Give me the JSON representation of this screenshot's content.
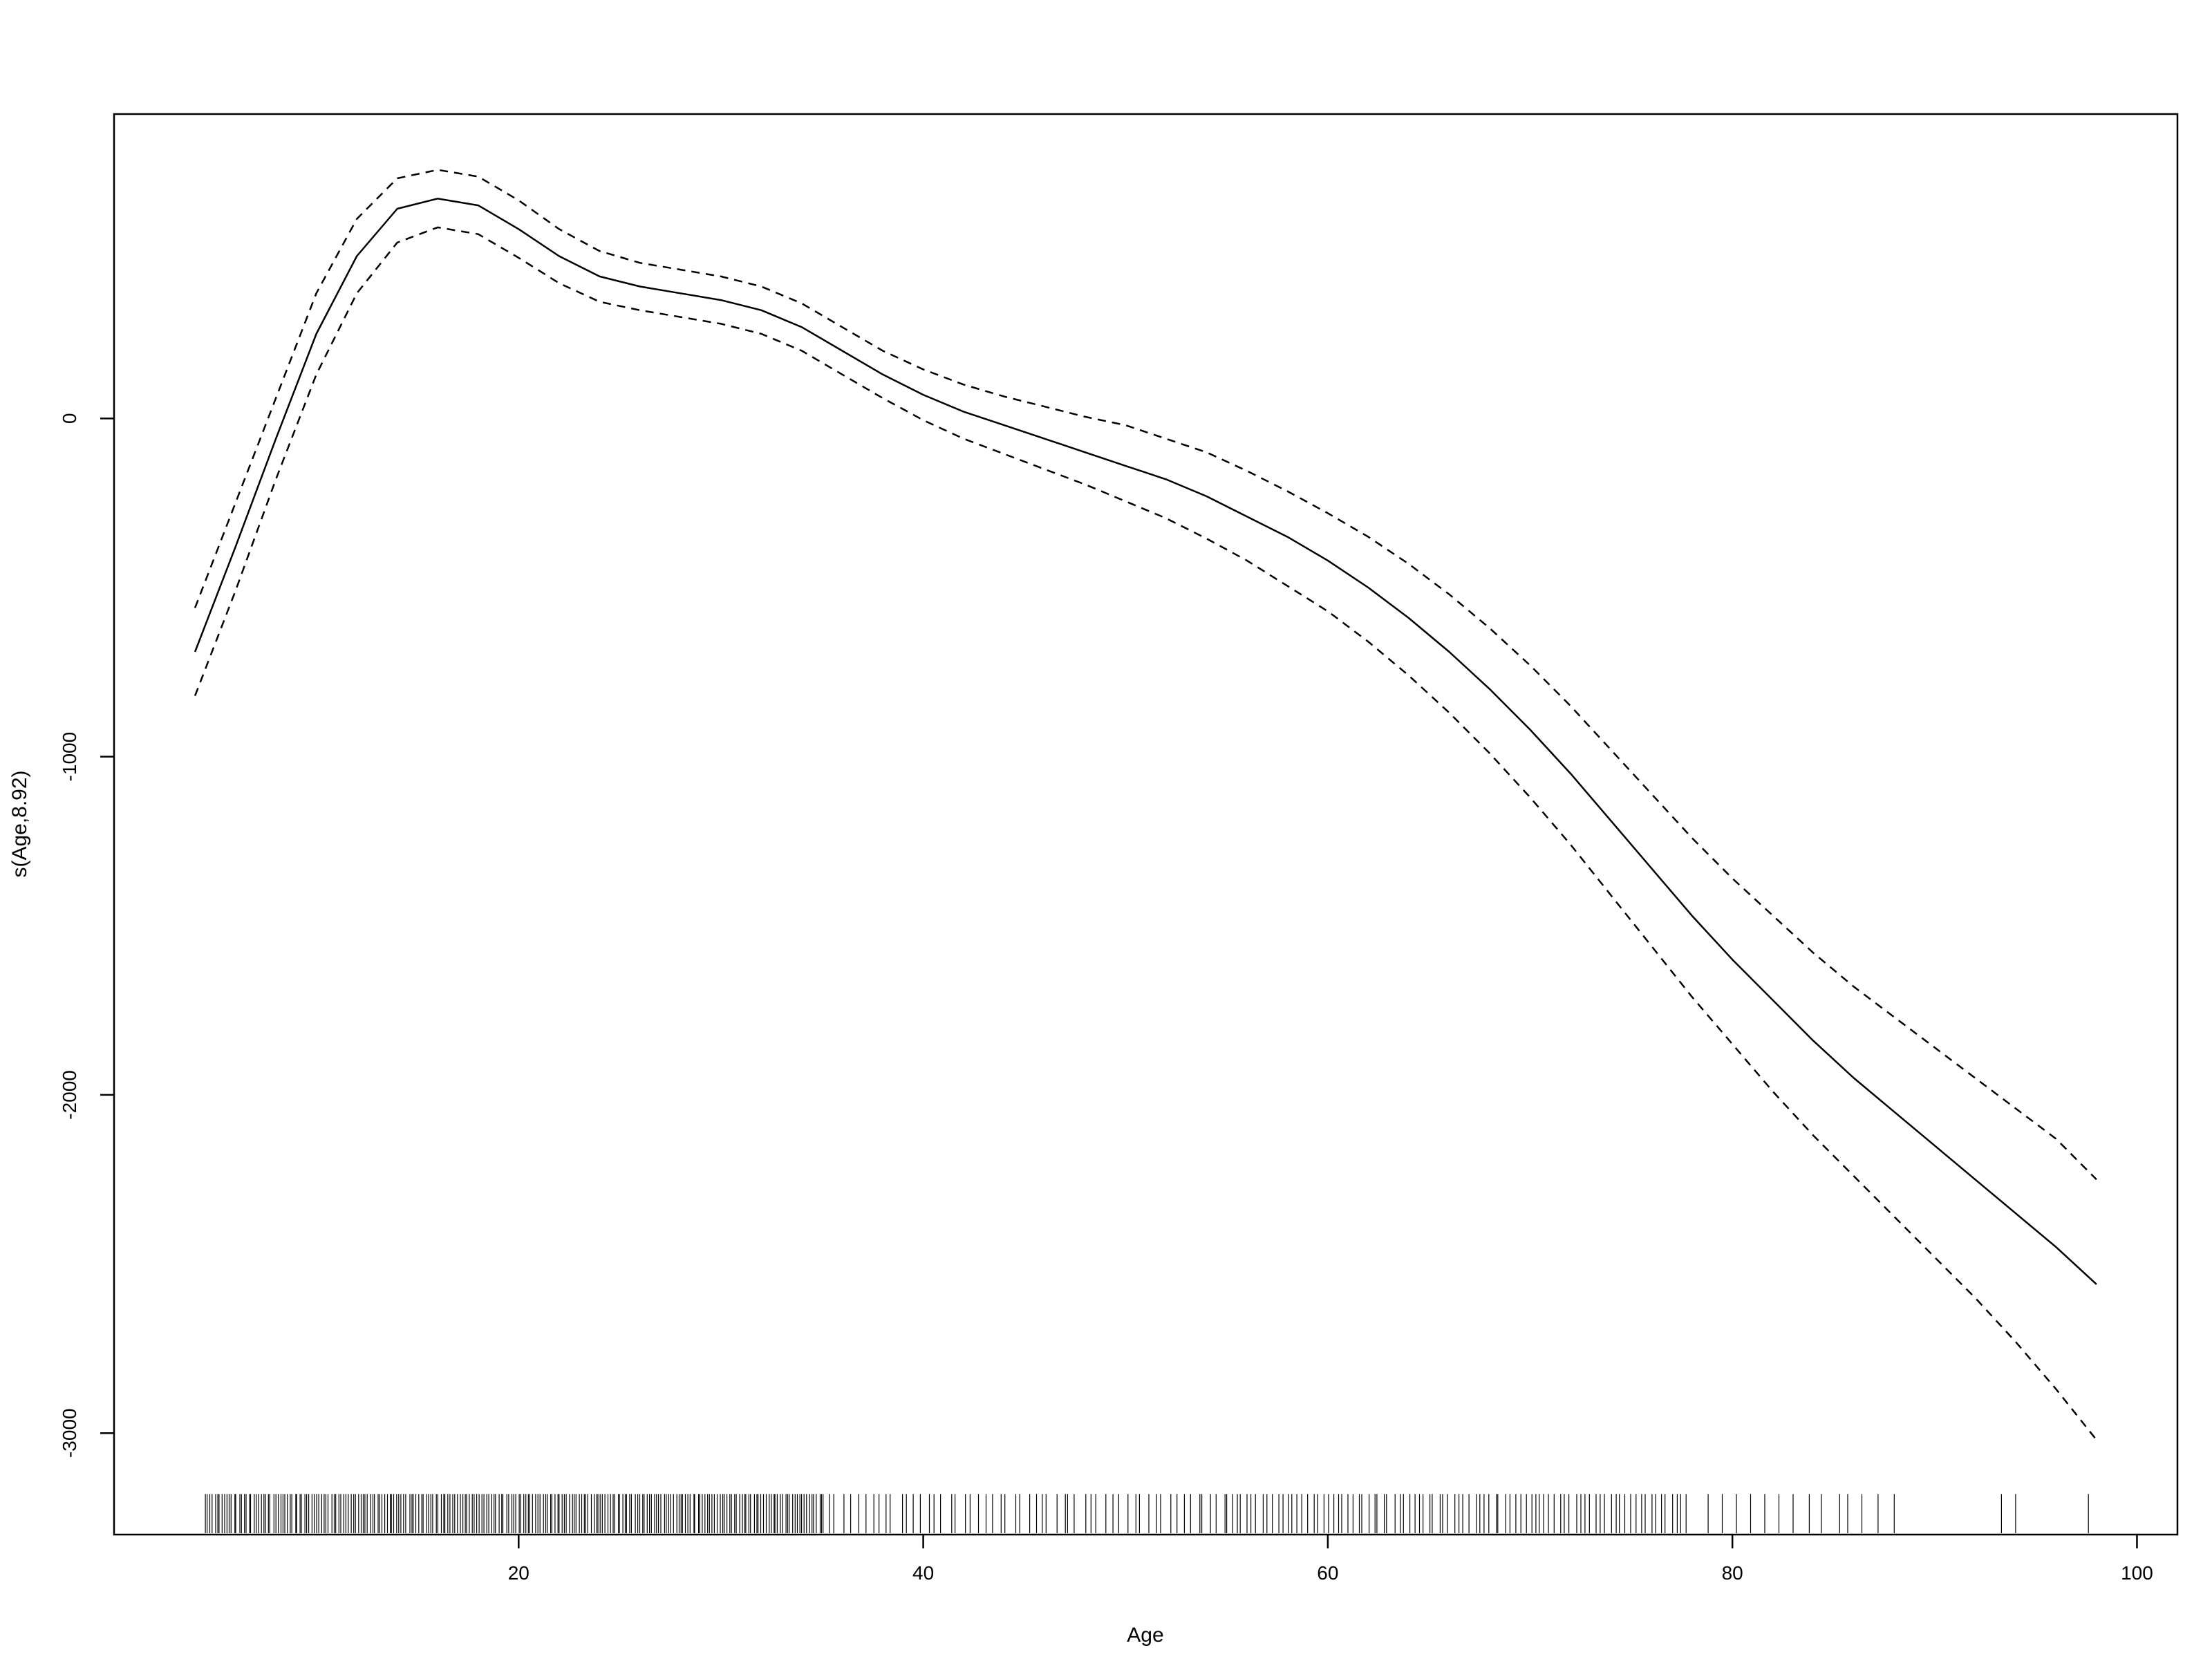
{
  "chart_data": {
    "type": "line",
    "title": "",
    "xlabel": "Age",
    "ylabel": "s(Age,8.92)",
    "xlim": [
      0,
      102
    ],
    "ylim": [
      -3300,
      900
    ],
    "xticks": [
      20,
      40,
      60,
      80,
      100
    ],
    "yticks": [
      -3000,
      -2000,
      -1000,
      0
    ],
    "grid": false,
    "legend": "none",
    "series": [
      {
        "role": "fit",
        "style": "solid",
        "x": [
          4,
          6,
          8,
          10,
          12,
          14,
          16,
          18,
          20,
          22,
          24,
          26,
          28,
          30,
          32,
          34,
          36,
          38,
          40,
          42,
          44,
          46,
          48,
          50,
          52,
          54,
          56,
          58,
          60,
          62,
          64,
          66,
          68,
          70,
          72,
          74,
          76,
          78,
          80,
          82,
          84,
          86,
          88,
          90,
          92,
          94,
          96,
          98
        ],
        "y": [
          -690,
          -380,
          -60,
          250,
          480,
          620,
          650,
          630,
          560,
          480,
          420,
          390,
          370,
          350,
          320,
          270,
          200,
          130,
          70,
          20,
          -20,
          -60,
          -100,
          -140,
          -180,
          -230,
          -290,
          -350,
          -420,
          -500,
          -590,
          -690,
          -800,
          -920,
          -1050,
          -1190,
          -1330,
          -1470,
          -1600,
          -1720,
          -1840,
          -1950,
          -2050,
          -2150,
          -2250,
          -2350,
          -2450,
          -2560
        ]
      },
      {
        "role": "upper-ci",
        "style": "dashed",
        "x": [
          4,
          6,
          8,
          10,
          12,
          14,
          16,
          18,
          20,
          22,
          24,
          26,
          28,
          30,
          32,
          34,
          36,
          38,
          40,
          42,
          44,
          46,
          48,
          50,
          52,
          54,
          56,
          58,
          60,
          62,
          64,
          66,
          68,
          70,
          72,
          74,
          76,
          78,
          80,
          82,
          84,
          86,
          88,
          90,
          92,
          94,
          96,
          98
        ],
        "y": [
          -560,
          -250,
          60,
          370,
          590,
          710,
          735,
          715,
          645,
          560,
          495,
          460,
          440,
          420,
          390,
          340,
          270,
          200,
          145,
          100,
          65,
          35,
          5,
          -20,
          -60,
          -100,
          -155,
          -215,
          -280,
          -350,
          -430,
          -520,
          -620,
          -730,
          -850,
          -980,
          -1110,
          -1240,
          -1360,
          -1470,
          -1580,
          -1680,
          -1770,
          -1860,
          -1950,
          -2040,
          -2130,
          -2250
        ]
      },
      {
        "role": "lower-ci",
        "style": "dashed",
        "x": [
          4,
          6,
          8,
          10,
          12,
          14,
          16,
          18,
          20,
          22,
          24,
          26,
          28,
          30,
          32,
          34,
          36,
          38,
          40,
          42,
          44,
          46,
          48,
          50,
          52,
          54,
          56,
          58,
          60,
          62,
          64,
          66,
          68,
          70,
          72,
          74,
          76,
          78,
          80,
          82,
          84,
          86,
          88,
          90,
          92,
          94,
          96,
          98
        ],
        "y": [
          -820,
          -510,
          -180,
          130,
          370,
          520,
          565,
          545,
          475,
          400,
          345,
          320,
          300,
          280,
          250,
          200,
          130,
          60,
          -5,
          -60,
          -105,
          -150,
          -195,
          -245,
          -295,
          -355,
          -420,
          -495,
          -570,
          -660,
          -760,
          -870,
          -990,
          -1120,
          -1260,
          -1410,
          -1560,
          -1710,
          -1850,
          -1990,
          -2120,
          -2240,
          -2360,
          -2480,
          -2600,
          -2730,
          -2870,
          -3020
        ]
      }
    ],
    "rug": {
      "dense_ranges": [
        [
          4.5,
          35,
          0.12
        ],
        [
          35,
          55,
          0.35
        ],
        [
          55,
          78,
          0.25
        ]
      ],
      "sparse": [
        78.8,
        79.5,
        80.2,
        80.9,
        81.6,
        82.3,
        83.0,
        83.8,
        84.4,
        85.3,
        85.7,
        86.4,
        87.2,
        88.0,
        93.3,
        94.0,
        97.6
      ]
    }
  }
}
